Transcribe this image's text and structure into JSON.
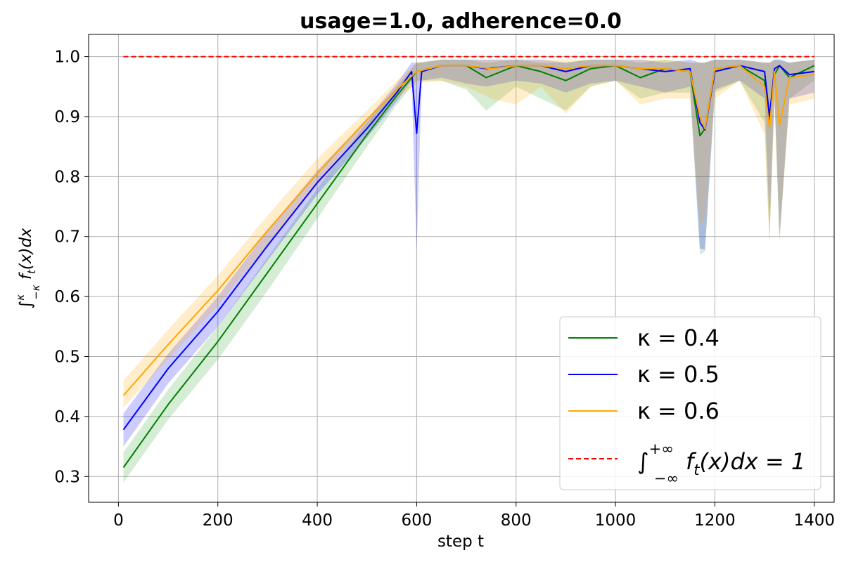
{
  "chart_data": {
    "type": "line",
    "title": "usage=1.0, adherence=0.0",
    "xlabel": "step t",
    "ylabel": "∫_{-κ}^{κ} f_t(x) dx",
    "xlim": [
      -60,
      1440
    ],
    "ylim": [
      0.257,
      1.037
    ],
    "xticks": [
      0,
      200,
      400,
      600,
      800,
      1000,
      1200,
      1400
    ],
    "yticks": [
      0.3,
      0.4,
      0.5,
      0.6,
      0.7,
      0.8,
      0.9,
      1.0
    ],
    "xtick_labels": [
      "0",
      "200",
      "400",
      "600",
      "800",
      "1000",
      "1200",
      "1400"
    ],
    "ytick_labels": [
      "0.3",
      "0.4",
      "0.5",
      "0.6",
      "0.7",
      "0.8",
      "0.9",
      "1.0"
    ],
    "grid": true,
    "legend_position": "bottom-right",
    "series": [
      {
        "name": "κ = 0.4",
        "color": "#008000",
        "band_color": "#2ca02c",
        "x": [
          10,
          100,
          200,
          300,
          400,
          500,
          560,
          600,
          650,
          700,
          740,
          800,
          850,
          900,
          950,
          1000,
          1050,
          1100,
          1150,
          1170,
          1180,
          1200,
          1250,
          1300,
          1310,
          1320,
          1330,
          1350,
          1400
        ],
        "y": [
          0.315,
          0.42,
          0.525,
          0.64,
          0.755,
          0.87,
          0.935,
          0.975,
          0.985,
          0.985,
          0.965,
          0.985,
          0.975,
          0.96,
          0.98,
          0.985,
          0.965,
          0.98,
          0.975,
          0.868,
          0.88,
          0.98,
          0.985,
          0.96,
          0.895,
          0.97,
          0.985,
          0.965,
          0.985
        ],
        "lower": [
          0.29,
          0.395,
          0.495,
          0.61,
          0.73,
          0.85,
          0.92,
          0.96,
          0.96,
          0.945,
          0.91,
          0.95,
          0.93,
          0.91,
          0.95,
          0.96,
          0.93,
          0.94,
          0.94,
          0.67,
          0.675,
          0.94,
          0.96,
          0.89,
          0.69,
          0.93,
          0.69,
          0.93,
          0.96
        ],
        "upper": [
          0.34,
          0.445,
          0.55,
          0.665,
          0.78,
          0.89,
          0.95,
          0.99,
          0.995,
          0.995,
          0.99,
          0.995,
          0.99,
          0.99,
          0.995,
          0.995,
          0.99,
          0.995,
          0.99,
          0.99,
          0.99,
          0.995,
          0.995,
          0.99,
          0.99,
          0.995,
          0.995,
          0.99,
          0.995
        ]
      },
      {
        "name": "κ = 0.5",
        "color": "#0000ff",
        "band_color": "#0000ff",
        "x": [
          10,
          100,
          200,
          300,
          400,
          500,
          560,
          590,
          600,
          610,
          650,
          700,
          740,
          800,
          850,
          900,
          950,
          1000,
          1050,
          1100,
          1150,
          1170,
          1180,
          1200,
          1250,
          1300,
          1310,
          1320,
          1330,
          1350,
          1400
        ],
        "y": [
          0.378,
          0.48,
          0.575,
          0.685,
          0.79,
          0.88,
          0.94,
          0.975,
          0.872,
          0.975,
          0.985,
          0.985,
          0.98,
          0.985,
          0.985,
          0.975,
          0.985,
          0.985,
          0.98,
          0.975,
          0.98,
          0.89,
          0.878,
          0.975,
          0.985,
          0.975,
          0.9,
          0.98,
          0.985,
          0.97,
          0.975
        ],
        "lower": [
          0.35,
          0.455,
          0.55,
          0.66,
          0.77,
          0.865,
          0.925,
          0.96,
          0.675,
          0.96,
          0.965,
          0.955,
          0.95,
          0.96,
          0.955,
          0.94,
          0.955,
          0.96,
          0.95,
          0.94,
          0.95,
          0.68,
          0.678,
          0.945,
          0.96,
          0.93,
          0.72,
          0.94,
          0.7,
          0.93,
          0.94
        ],
        "upper": [
          0.405,
          0.505,
          0.6,
          0.71,
          0.81,
          0.895,
          0.955,
          0.99,
          0.99,
          0.99,
          0.995,
          0.995,
          0.995,
          0.995,
          0.995,
          0.99,
          0.995,
          0.995,
          0.995,
          0.99,
          0.995,
          0.99,
          0.99,
          0.995,
          0.995,
          0.99,
          0.99,
          0.995,
          0.995,
          0.99,
          0.995
        ]
      },
      {
        "name": "κ = 0.6",
        "color": "#ffa500",
        "band_color": "#ffa500",
        "x": [
          10,
          100,
          200,
          300,
          400,
          500,
          560,
          600,
          650,
          700,
          750,
          800,
          850,
          900,
          950,
          1000,
          1050,
          1100,
          1150,
          1170,
          1180,
          1200,
          1250,
          1300,
          1310,
          1320,
          1330,
          1350,
          1400
        ],
        "y": [
          0.435,
          0.52,
          0.61,
          0.71,
          0.805,
          0.895,
          0.945,
          0.975,
          0.985,
          0.985,
          0.98,
          0.985,
          0.985,
          0.98,
          0.985,
          0.985,
          0.98,
          0.98,
          0.975,
          0.9,
          0.88,
          0.98,
          0.985,
          0.95,
          0.88,
          0.975,
          0.885,
          0.965,
          0.97
        ],
        "lower": [
          0.415,
          0.495,
          0.585,
          0.685,
          0.785,
          0.88,
          0.93,
          0.955,
          0.96,
          0.95,
          0.93,
          0.92,
          0.95,
          0.905,
          0.95,
          0.96,
          0.92,
          0.93,
          0.93,
          0.72,
          0.73,
          0.93,
          0.96,
          0.87,
          0.69,
          0.92,
          0.7,
          0.92,
          0.93
        ],
        "upper": [
          0.46,
          0.545,
          0.635,
          0.735,
          0.83,
          0.91,
          0.96,
          0.99,
          0.995,
          0.995,
          0.995,
          0.995,
          0.995,
          0.995,
          0.995,
          0.995,
          0.995,
          0.995,
          0.99,
          0.99,
          0.99,
          0.995,
          0.995,
          0.99,
          0.99,
          0.995,
          0.99,
          0.99,
          0.995
        ]
      }
    ],
    "reference_line": {
      "label": "∫_{-∞}^{+∞} f_t(x) dx = 1",
      "y": 1.0,
      "x_range": [
        10,
        1400
      ],
      "color": "#ff0000",
      "style": "dashed"
    }
  }
}
